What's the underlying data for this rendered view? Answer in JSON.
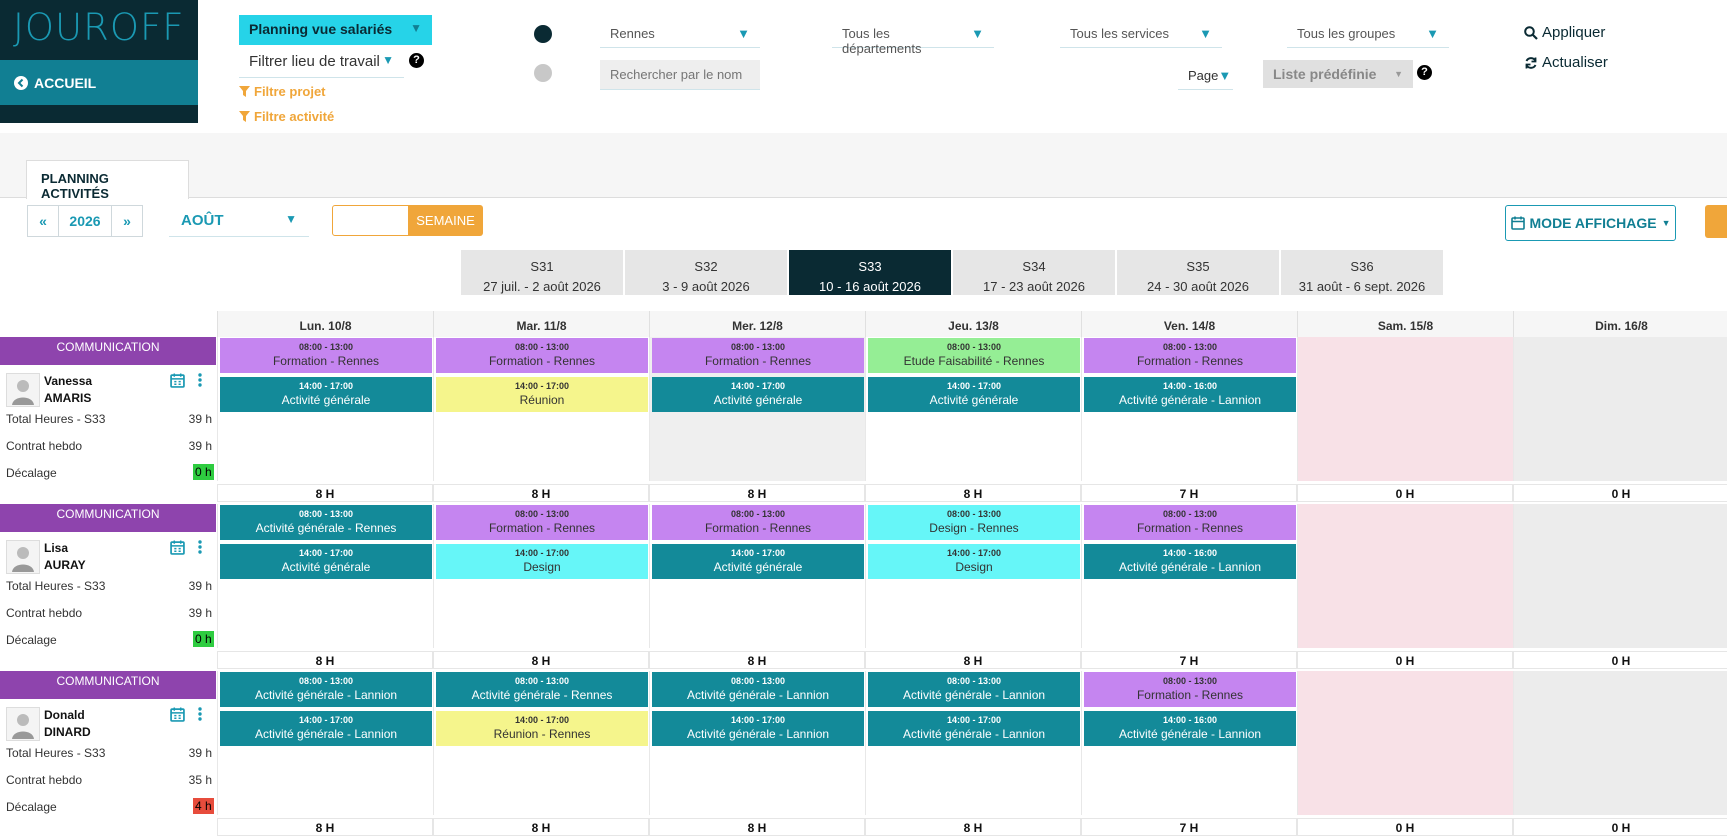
{
  "brand": {
    "logo": "JOUROFF",
    "home_label": "ACCUEIL"
  },
  "filters": {
    "vue": "Planning vue salariés",
    "lieu": "Filtrer lieu de travail",
    "projet": "Filtre projet",
    "activite": "Filtre activité",
    "ville": "Rennes",
    "departements": "Tous les départements",
    "services": "Tous les services",
    "groupes": "Tous les groupes",
    "search_placeholder": "Rechercher par le nom",
    "page": "Page",
    "liste": "Liste prédéfinie",
    "appliquer": "Appliquer",
    "actualiser": "Actualiser"
  },
  "tabs": {
    "planning": "PLANNING ACTIVITÉS"
  },
  "nav": {
    "year": "2026",
    "month": "AOÛT",
    "week_btn": "SEMAINE",
    "mode": "MODE AFFICHAGE"
  },
  "weeks": [
    {
      "code": "S31",
      "range": "27 juil. - 2 août 2026",
      "active": false
    },
    {
      "code": "S32",
      "range": "3 - 9 août 2026",
      "active": false
    },
    {
      "code": "S33",
      "range": "10 - 16 août 2026",
      "active": true
    },
    {
      "code": "S34",
      "range": "17 - 23 août 2026",
      "active": false
    },
    {
      "code": "S35",
      "range": "24 - 30 août 2026",
      "active": false
    },
    {
      "code": "S36",
      "range": "31 août - 6 sept. 2026",
      "active": false
    }
  ],
  "days": [
    "Lun. 10/8",
    "Mar. 11/8",
    "Mer. 12/8",
    "Jeu. 13/8",
    "Ven. 14/8",
    "Sam. 15/8",
    "Dim. 16/8"
  ],
  "colors": {
    "formation": "#c585f0",
    "activite": "#138a99",
    "reunion": "#f5f58c",
    "etude": "#95ee95",
    "design": "#66f6f8",
    "dept": "#8e44ad",
    "weekend_sat": "#f8e1e7",
    "weekend_sun": "#ececec",
    "empty_gray": "#efefef",
    "badge_green": "#2ecc40",
    "badge_red": "#e74c3c"
  },
  "employees": [
    {
      "dept": "COMMUNICATION",
      "first": "Vanessa",
      "last": "AMARIS",
      "total_label": "Total Heures - S33",
      "total": "39 h",
      "contract_label": "Contrat hebdo",
      "contract": "39 h",
      "decalage_label": "Décalage",
      "decalage": "0 h",
      "decalage_status": "ok",
      "days": [
        {
          "events": [
            {
              "time": "08:00 - 13:00",
              "label": "Formation - Rennes",
              "kind": "formation"
            },
            {
              "time": "14:00 - 17:00",
              "label": "Activité générale",
              "kind": "activite"
            }
          ],
          "total": "8 H",
          "bg": "white"
        },
        {
          "events": [
            {
              "time": "08:00 - 13:00",
              "label": "Formation - Rennes",
              "kind": "formation"
            },
            {
              "time": "14:00 - 17:00",
              "label": "Réunion",
              "kind": "reunion"
            }
          ],
          "total": "8 H",
          "bg": "white"
        },
        {
          "events": [
            {
              "time": "08:00 - 13:00",
              "label": "Formation - Rennes",
              "kind": "formation"
            },
            {
              "time": "14:00 - 17:00",
              "label": "Activité générale",
              "kind": "activite"
            }
          ],
          "total": "8 H",
          "bg": "gray"
        },
        {
          "events": [
            {
              "time": "08:00 - 13:00",
              "label": "Etude Faisabilité - Rennes",
              "kind": "etude"
            },
            {
              "time": "14:00 - 17:00",
              "label": "Activité générale",
              "kind": "activite"
            }
          ],
          "total": "8 H",
          "bg": "white"
        },
        {
          "events": [
            {
              "time": "08:00 - 13:00",
              "label": "Formation - Rennes",
              "kind": "formation"
            },
            {
              "time": "14:00 - 16:00",
              "label": "Activité générale - Lannion",
              "kind": "activite"
            }
          ],
          "total": "7 H",
          "bg": "white"
        },
        {
          "events": [],
          "total": "0 H",
          "bg": "sat"
        },
        {
          "events": [],
          "total": "0 H",
          "bg": "sun"
        }
      ]
    },
    {
      "dept": "COMMUNICATION",
      "first": "Lisa",
      "last": "AURAY",
      "total_label": "Total Heures - S33",
      "total": "39 h",
      "contract_label": "Contrat hebdo",
      "contract": "39 h",
      "decalage_label": "Décalage",
      "decalage": "0 h",
      "decalage_status": "ok",
      "days": [
        {
          "events": [
            {
              "time": "08:00 - 13:00",
              "label": "Activité générale - Rennes",
              "kind": "activite"
            },
            {
              "time": "14:00 - 17:00",
              "label": "Activité générale",
              "kind": "activite"
            }
          ],
          "total": "8 H",
          "bg": "white"
        },
        {
          "events": [
            {
              "time": "08:00 - 13:00",
              "label": "Formation - Rennes",
              "kind": "formation"
            },
            {
              "time": "14:00 - 17:00",
              "label": "Design",
              "kind": "design"
            }
          ],
          "total": "8 H",
          "bg": "white"
        },
        {
          "events": [
            {
              "time": "08:00 - 13:00",
              "label": "Formation - Rennes",
              "kind": "formation"
            },
            {
              "time": "14:00 - 17:00",
              "label": "Activité générale",
              "kind": "activite"
            }
          ],
          "total": "8 H",
          "bg": "white"
        },
        {
          "events": [
            {
              "time": "08:00 - 13:00",
              "label": "Design - Rennes",
              "kind": "design"
            },
            {
              "time": "14:00 - 17:00",
              "label": "Design",
              "kind": "design"
            }
          ],
          "total": "8 H",
          "bg": "white"
        },
        {
          "events": [
            {
              "time": "08:00 - 13:00",
              "label": "Formation - Rennes",
              "kind": "formation"
            },
            {
              "time": "14:00 - 16:00",
              "label": "Activité générale - Lannion",
              "kind": "activite"
            }
          ],
          "total": "7 H",
          "bg": "white"
        },
        {
          "events": [],
          "total": "0 H",
          "bg": "sat"
        },
        {
          "events": [],
          "total": "0 H",
          "bg": "sun"
        }
      ]
    },
    {
      "dept": "COMMUNICATION",
      "first": "Donald",
      "last": "DINARD",
      "total_label": "Total Heures - S33",
      "total": "39 h",
      "contract_label": "Contrat hebdo",
      "contract": "35 h",
      "decalage_label": "Décalage",
      "decalage": "4 h",
      "decalage_status": "over",
      "days": [
        {
          "events": [
            {
              "time": "08:00 - 13:00",
              "label": "Activité générale - Lannion",
              "kind": "activite"
            },
            {
              "time": "14:00 - 17:00",
              "label": "Activité générale - Lannion",
              "kind": "activite"
            }
          ],
          "total": "8 H",
          "bg": "white"
        },
        {
          "events": [
            {
              "time": "08:00 - 13:00",
              "label": "Activité générale - Rennes",
              "kind": "activite"
            },
            {
              "time": "14:00 - 17:00",
              "label": "Réunion - Rennes",
              "kind": "reunion"
            }
          ],
          "total": "8 H",
          "bg": "white"
        },
        {
          "events": [
            {
              "time": "08:00 - 13:00",
              "label": "Activité générale - Lannion",
              "kind": "activite"
            },
            {
              "time": "14:00 - 17:00",
              "label": "Activité générale - Lannion",
              "kind": "activite"
            }
          ],
          "total": "8 H",
          "bg": "white"
        },
        {
          "events": [
            {
              "time": "08:00 - 13:00",
              "label": "Activité générale - Lannion",
              "kind": "activite"
            },
            {
              "time": "14:00 - 17:00",
              "label": "Activité générale - Lannion",
              "kind": "activite"
            }
          ],
          "total": "8 H",
          "bg": "white"
        },
        {
          "events": [
            {
              "time": "08:00 - 13:00",
              "label": "Formation - Rennes",
              "kind": "formation"
            },
            {
              "time": "14:00 - 16:00",
              "label": "Activité générale - Lannion",
              "kind": "activite"
            }
          ],
          "total": "7 H",
          "bg": "white"
        },
        {
          "events": [],
          "total": "0 H",
          "bg": "sat"
        },
        {
          "events": [],
          "total": "0 H",
          "bg": "sun"
        }
      ]
    }
  ]
}
